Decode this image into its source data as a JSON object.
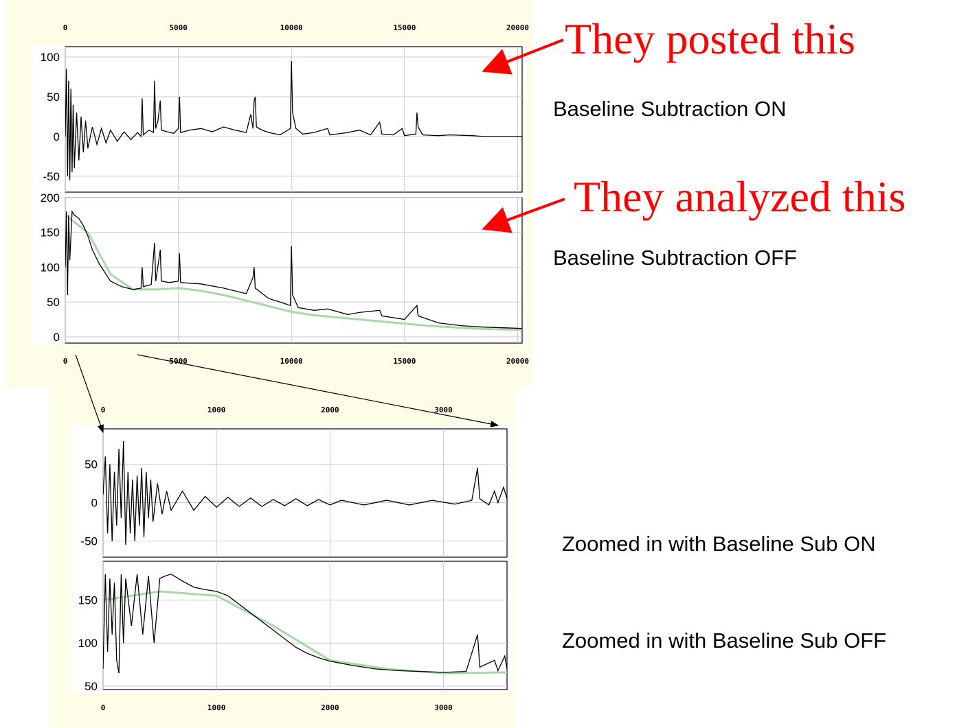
{
  "chart_data": [
    {
      "type": "line",
      "xtick_position": "top",
      "grid": true,
      "xlim": [
        0,
        20200
      ],
      "ylim": [
        -70,
        113
      ],
      "xticks": [
        0,
        5000,
        10000,
        15000,
        20000
      ],
      "yticks": [
        -50,
        0,
        50,
        100
      ],
      "series": [
        {
          "color": "#000000",
          "x": [
            0,
            50,
            100,
            150,
            200,
            250,
            300,
            350,
            400,
            500,
            600,
            700,
            800,
            900,
            1000,
            1200,
            1400,
            1600,
            1800,
            2000,
            2300,
            2600,
            2900,
            3200,
            3350,
            3400,
            3450,
            3700,
            3900,
            3950,
            4000,
            4100,
            4200,
            4250,
            4500,
            4800,
            5000,
            5050,
            5100,
            5500,
            6000,
            6500,
            7000,
            7500,
            8000,
            8200,
            8300,
            8350,
            8400,
            8450,
            8700,
            9000,
            9500,
            9950,
            10000,
            10050,
            10200,
            10500,
            11000,
            11600,
            11700,
            12500,
            13000,
            13500,
            13900,
            14000,
            14500,
            14900,
            15000,
            15500,
            15550,
            15600,
            15800,
            16500,
            17000,
            18000,
            18500,
            20200
          ],
          "values": [
            0,
            85,
            -50,
            70,
            -55,
            60,
            -45,
            40,
            -40,
            30,
            -30,
            25,
            -20,
            20,
            -15,
            12,
            -10,
            10,
            -8,
            8,
            -6,
            6,
            -4,
            5,
            0,
            48,
            2,
            8,
            5,
            70,
            10,
            20,
            45,
            8,
            6,
            4,
            10,
            50,
            5,
            8,
            10,
            6,
            12,
            8,
            5,
            28,
            10,
            45,
            50,
            12,
            8,
            5,
            2,
            10,
            95,
            30,
            10,
            3,
            5,
            10,
            2,
            5,
            8,
            2,
            18,
            3,
            2,
            10,
            1,
            3,
            30,
            12,
            2,
            1,
            2,
            1,
            0,
            0
          ]
        }
      ]
    },
    {
      "type": "line",
      "xtick_position": "bottom",
      "grid": true,
      "xlim": [
        0,
        20200
      ],
      "ylim": [
        -9,
        200
      ],
      "xticks": [
        0,
        5000,
        10000,
        15000,
        20000
      ],
      "yticks": [
        0,
        50,
        100,
        150,
        200
      ],
      "series": [
        {
          "color": "#a8d8a8",
          "x": [
            0,
            1000,
            2000,
            3000,
            4000,
            5000,
            6000,
            7000,
            8000,
            9000,
            10000,
            11000,
            12000,
            13000,
            14000,
            15000,
            16000,
            17000,
            18000,
            19000,
            20200
          ],
          "values": [
            175,
            150,
            90,
            68,
            68,
            70,
            66,
            60,
            52,
            44,
            36,
            31,
            28,
            25,
            22,
            19,
            16,
            14,
            12,
            11,
            10
          ]
        },
        {
          "color": "#000000",
          "x": [
            0,
            50,
            100,
            150,
            200,
            300,
            400,
            600,
            800,
            1000,
            1200,
            1500,
            1800,
            2000,
            2500,
            3000,
            3350,
            3400,
            3450,
            3800,
            3950,
            4000,
            4200,
            4250,
            4600,
            5000,
            5050,
            5100,
            6000,
            7000,
            8000,
            8300,
            8350,
            8400,
            9000,
            9500,
            9950,
            10000,
            10050,
            10300,
            11000,
            11600,
            12500,
            13000,
            13900,
            14000,
            15000,
            15550,
            15600,
            16500,
            17500,
            18500,
            20200
          ],
          "values": [
            100,
            180,
            60,
            175,
            110,
            180,
            175,
            170,
            160,
            145,
            125,
            105,
            90,
            80,
            72,
            68,
            70,
            100,
            72,
            75,
            135,
            80,
            125,
            80,
            78,
            80,
            120,
            78,
            76,
            70,
            62,
            85,
            100,
            70,
            55,
            50,
            45,
            130,
            60,
            42,
            38,
            40,
            32,
            35,
            38,
            30,
            25,
            45,
            30,
            20,
            16,
            14,
            12
          ]
        }
      ]
    },
    {
      "type": "line",
      "xtick_position": "top",
      "grid": true,
      "xlim": [
        0,
        3560
      ],
      "ylim": [
        -71,
        96
      ],
      "xticks": [
        0,
        1000,
        2000,
        3000
      ],
      "yticks": [
        -50,
        0,
        50
      ],
      "series": [
        {
          "color": "#000000",
          "x": [
            0,
            20,
            40,
            60,
            80,
            100,
            120,
            140,
            160,
            180,
            200,
            220,
            240,
            260,
            280,
            300,
            320,
            340,
            360,
            380,
            400,
            420,
            440,
            480,
            520,
            560,
            600,
            700,
            800,
            900,
            1000,
            1100,
            1200,
            1300,
            1400,
            1500,
            1600,
            1700,
            1800,
            1900,
            2000,
            2100,
            2300,
            2500,
            2700,
            2900,
            3100,
            3250,
            3300,
            3320,
            3400,
            3450,
            3480,
            3530,
            3560
          ],
          "values": [
            10,
            60,
            -40,
            50,
            -50,
            40,
            -30,
            70,
            -20,
            80,
            -55,
            40,
            -40,
            30,
            -50,
            35,
            -30,
            45,
            -45,
            40,
            -20,
            30,
            -25,
            25,
            -15,
            15,
            -10,
            15,
            -10,
            8,
            -6,
            7,
            -5,
            6,
            -5,
            4,
            -4,
            5,
            -4,
            4,
            -3,
            3,
            -3,
            3,
            -3,
            3,
            -2,
            3,
            45,
            5,
            -3,
            15,
            0,
            20,
            5
          ]
        }
      ]
    },
    {
      "type": "line",
      "xtick_position": "bottom",
      "grid": true,
      "xlim": [
        0,
        3560
      ],
      "ylim": [
        46,
        195
      ],
      "xticks": [
        0,
        1000,
        2000,
        3000
      ],
      "yticks": [
        50,
        100,
        150
      ],
      "series": [
        {
          "color": "#a8d8a8",
          "x": [
            0,
            500,
            1000,
            1500,
            2000,
            2500,
            3000,
            3560
          ],
          "values": [
            150,
            160,
            155,
            120,
            80,
            70,
            65,
            66
          ]
        },
        {
          "color": "#000000",
          "x": [
            0,
            20,
            40,
            60,
            80,
            100,
            120,
            140,
            160,
            180,
            200,
            250,
            300,
            350,
            400,
            450,
            500,
            550,
            600,
            700,
            800,
            900,
            1000,
            1100,
            1200,
            1300,
            1400,
            1500,
            1600,
            1700,
            1800,
            1900,
            2000,
            2200,
            2400,
            2600,
            2800,
            3000,
            3200,
            3300,
            3320,
            3450,
            3480,
            3540,
            3560
          ],
          "values": [
            70,
            180,
            90,
            175,
            110,
            170,
            80,
            65,
            180,
            100,
            175,
            120,
            180,
            110,
            178,
            100,
            175,
            178,
            180,
            172,
            165,
            162,
            160,
            155,
            145,
            135,
            125,
            115,
            105,
            95,
            88,
            83,
            79,
            74,
            70,
            68,
            67,
            66,
            67,
            110,
            72,
            80,
            68,
            85,
            70
          ]
        }
      ]
    }
  ],
  "annotations": [
    "They posted this",
    "They analyzed this",
    "Baseline Subtraction ON",
    "Baseline Subtraction OFF",
    "Zoomed in with Baseline Sub ON",
    "Zoomed in with Baseline Sub OFF"
  ]
}
